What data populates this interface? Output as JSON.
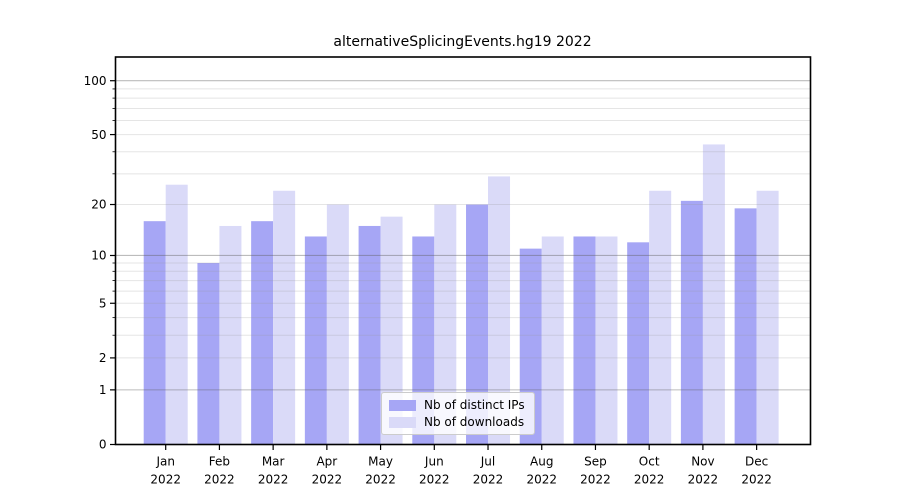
{
  "chart_data": {
    "type": "bar",
    "title": "alternativeSplicingEvents.hg19 2022",
    "categories": [
      "Jan 2022",
      "Feb 2022",
      "Mar 2022",
      "Apr 2022",
      "May 2022",
      "Jun 2022",
      "Jul 2022",
      "Aug 2022",
      "Sep 2022",
      "Oct 2022",
      "Nov 2022",
      "Dec 2022"
    ],
    "series": [
      {
        "name": "Nb of distinct IPs",
        "color": "#a6a6f5",
        "values": [
          16,
          9,
          16,
          13,
          15,
          13,
          20,
          11,
          13,
          12,
          21,
          19
        ]
      },
      {
        "name": "Nb of downloads",
        "color": "#dadaf8",
        "values": [
          26,
          15,
          24,
          20,
          17,
          20,
          29,
          13,
          13,
          24,
          44,
          24
        ]
      }
    ],
    "xlabel": "",
    "ylabel": "",
    "yscale": "log10(value+1)",
    "ylim": [
      0,
      138
    ],
    "ytick_labels": [
      "100",
      "50",
      "20",
      "10",
      "5",
      "2",
      "1",
      "0"
    ],
    "ytick_values": [
      100,
      50,
      20,
      10,
      5,
      2,
      1,
      0
    ],
    "major_gridlines": [
      1,
      10,
      100
    ],
    "minor_gridlines": [
      2,
      3,
      4,
      5,
      6,
      7,
      8,
      9,
      20,
      30,
      40,
      50,
      60,
      70,
      80,
      90
    ],
    "minor_tick_values": [
      3,
      4,
      6,
      7,
      8,
      9,
      30,
      40,
      60,
      70,
      80,
      90
    ],
    "grid": true,
    "legend_position": "inside-bottom-center",
    "colors": {
      "bar_dark": "#a6a6f5",
      "bar_light": "#dadaf8",
      "major_grid": "#b3b3b3",
      "minor_grid": "#e8e8e8",
      "axis": "#000000",
      "text": "#000000"
    }
  }
}
